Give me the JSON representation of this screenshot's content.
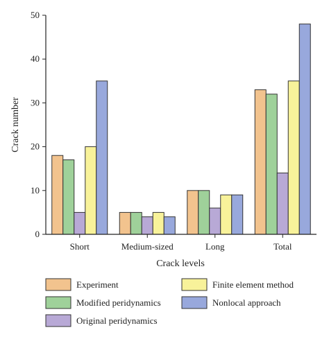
{
  "chart_data": {
    "type": "bar",
    "xlabel": "Crack levels",
    "ylabel": "Crack number",
    "ylim": [
      0,
      50
    ],
    "yticks": [
      0,
      10,
      20,
      30,
      40,
      50
    ],
    "categories": [
      "Short",
      "Medium-sized",
      "Long",
      "Total"
    ],
    "series": [
      {
        "name": "Experiment",
        "color": "#f2c38e",
        "values": [
          18,
          5,
          10,
          33
        ]
      },
      {
        "name": "Modified peridynamics",
        "color": "#9fd19a",
        "values": [
          17,
          5,
          10,
          32
        ]
      },
      {
        "name": "Original peridynamics",
        "color": "#b8a9d6",
        "values": [
          5,
          4,
          6,
          14
        ]
      },
      {
        "name": "Finite element method",
        "color": "#f8f29a",
        "values": [
          20,
          5,
          9,
          35
        ]
      },
      {
        "name": "Nonlocal approach",
        "color": "#98a8dc",
        "values": [
          35,
          4,
          9,
          48
        ]
      }
    ],
    "legend_order": [
      "Experiment",
      "Finite element method",
      "Modified peridynamics",
      "Nonlocal approach",
      "Original peridynamics"
    ],
    "legend_position": "bottom",
    "grid": false
  }
}
